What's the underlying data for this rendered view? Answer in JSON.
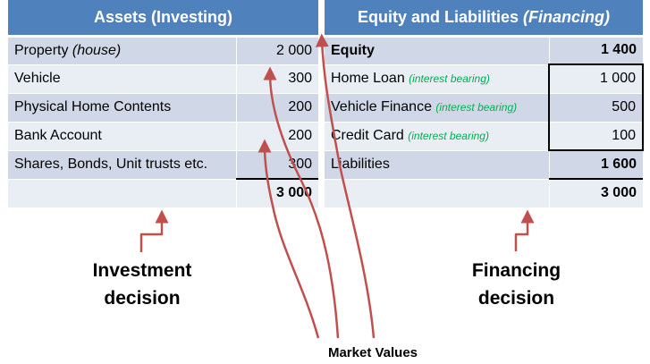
{
  "assets": {
    "header": "Assets (Investing)",
    "rows": [
      {
        "label": "Property ",
        "note": "(house)",
        "value": "2 000"
      },
      {
        "label": "Vehicle",
        "note": "",
        "value": "300"
      },
      {
        "label": "Physical Home Contents",
        "note": "",
        "value": "200"
      },
      {
        "label": "Bank Account",
        "note": "",
        "value": "200"
      },
      {
        "label": "Shares, Bonds, Unit trusts etc.",
        "note": "",
        "value": "300"
      }
    ],
    "total": "3 000"
  },
  "equity_liabilities": {
    "header_main": "Equity and Liabilities ",
    "header_italic": "(Financing)",
    "equity": {
      "label": "Equity",
      "value": "1 400"
    },
    "liabilities_items": [
      {
        "label": "Home Loan ",
        "note": "(interest bearing)",
        "value": "1 000"
      },
      {
        "label": "Vehicle Finance ",
        "note": "(interest bearing)",
        "value": "500"
      },
      {
        "label": "Credit Card ",
        "note": "(interest bearing)",
        "value": "100"
      }
    ],
    "liabilities_total": {
      "label": "Liabilities",
      "value": "1 600"
    },
    "total": "3 000"
  },
  "captions": {
    "investment_line1": "Investment",
    "investment_line2": "decision",
    "financing_line1": "Financing",
    "financing_line2": "decision",
    "market_values": "Market Values"
  },
  "colors": {
    "header_bg": "#4f81bd",
    "row_dark": "#d0d8e8",
    "row_light": "#e9edf4",
    "arrow": "#c0504d",
    "note_green": "#00b050"
  }
}
